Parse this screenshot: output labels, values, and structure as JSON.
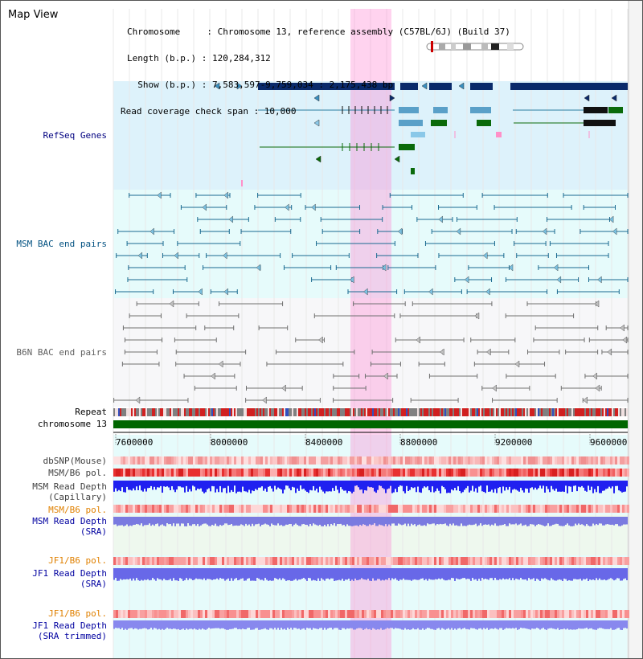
{
  "title": "Map View",
  "info": {
    "line1": "Chromosome     : Chromosome 13, reference assembly (C57BL/6J) (Build 37)",
    "line2": "Length (b.p.) : 120,284,312",
    "line3": "  Show (b.p.) : 7,583,597-9,759,034 : 2,175,438 bp",
    "line4": "Read coverage check span : 10,000"
  },
  "tracks": {
    "refseq": "RefSeq Genes",
    "msm_bac": "MSM BAC end pairs",
    "b6n_bac": "B6N BAC end pairs",
    "repeat": "Repeat",
    "chromosome": "chromosome 13",
    "dbsnp": "dbSNP(Mouse)",
    "msm_b6_pol_1": "MSM/B6 pol.",
    "msm_read_cap_1": "MSM Read Depth",
    "msm_read_cap_2": "(Capillary)",
    "msm_b6_pol_2": "MSM/B6 pol.",
    "msm_read_sra_1": "MSM Read Depth",
    "msm_read_sra_2": "(SRA)",
    "jf1_b6_pol_1": "JF1/B6 pol.",
    "jf1_read_sra_1": "JF1 Read Depth",
    "jf1_read_sra_2": "(SRA)",
    "jf1_b6_pol_2": "JF1/B6 pol.",
    "jf1_read_trim_1": "JF1 Read Depth",
    "jf1_read_trim_2": "(SRA trimmed)"
  },
  "ruler": [
    "7600000",
    "8000000",
    "8400000",
    "8800000",
    "9200000",
    "9600000"
  ],
  "colors": {
    "refseq_label": "#000080",
    "msm_label": "#005080",
    "b6n_label": "#606060",
    "orange_label": "#e08000",
    "blue_label": "#0000a0",
    "highlight": "#ff80d0"
  }
}
